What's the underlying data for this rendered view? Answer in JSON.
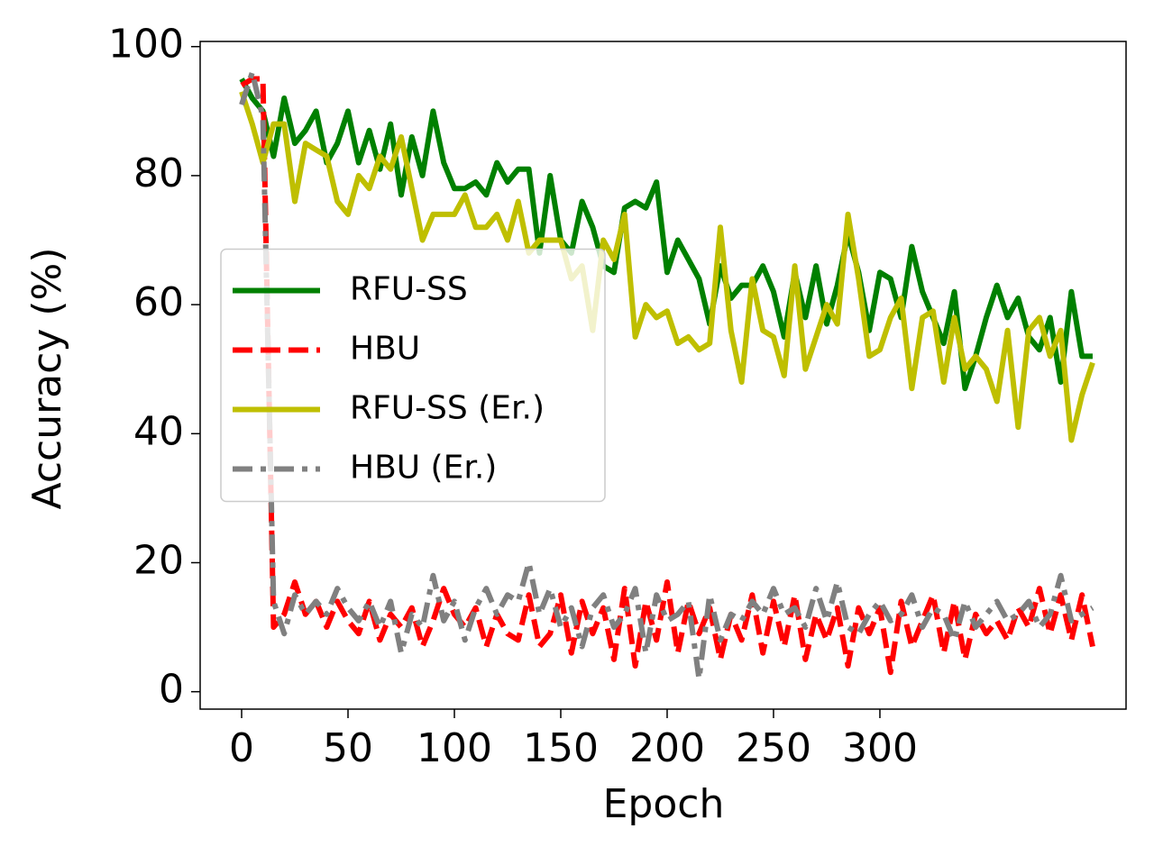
{
  "chart_data": {
    "type": "line",
    "xlabel": "Epoch",
    "ylabel": "Accuracy (%)",
    "x": [
      0,
      5,
      10,
      15,
      20,
      25,
      30,
      35,
      40,
      45,
      50,
      55,
      60,
      65,
      70,
      75,
      80,
      85,
      90,
      95,
      100,
      105,
      110,
      115,
      120,
      125,
      130,
      135,
      140,
      145,
      150,
      155,
      160,
      165,
      170,
      175,
      180,
      185,
      190,
      195,
      200,
      205,
      210,
      215,
      220,
      225,
      230,
      235,
      240,
      245,
      250,
      255,
      260,
      265,
      270,
      275,
      280,
      285,
      290,
      295,
      300,
      305,
      310,
      315,
      320,
      325,
      330,
      335,
      340,
      345,
      350,
      355,
      360,
      365,
      370,
      375,
      380,
      385,
      390,
      395,
      400
    ],
    "series": [
      {
        "name": "RFU-SS",
        "color": "#008000",
        "linestyle": "solid",
        "values": [
          95,
          92,
          90,
          83,
          92,
          85,
          87,
          90,
          82,
          85,
          90,
          82,
          87,
          81,
          88,
          77,
          86,
          80,
          90,
          82,
          78,
          78,
          79,
          77,
          82,
          79,
          81,
          81,
          68,
          80,
          70,
          68,
          76,
          72,
          66,
          65,
          75,
          76,
          75,
          79,
          65,
          70,
          67,
          64,
          57,
          66,
          61,
          63,
          63,
          66,
          62,
          55,
          65,
          58,
          66,
          57,
          63,
          71,
          65,
          56,
          65,
          64,
          58,
          69,
          62,
          58,
          54,
          62,
          47,
          52,
          58,
          63,
          58,
          61,
          55,
          53,
          58,
          48,
          62,
          52,
          52
        ]
      },
      {
        "name": "HBU",
        "color": "#ff0000",
        "linestyle": "dashed",
        "values": [
          94,
          95,
          95,
          10,
          12,
          17,
          12,
          14,
          10,
          14,
          11,
          9,
          14,
          8,
          12,
          10,
          13,
          7,
          11,
          16,
          12,
          10,
          13,
          7,
          12,
          9,
          8,
          15,
          7,
          9,
          15,
          6,
          14,
          9,
          13,
          5,
          16,
          4,
          14,
          8,
          17,
          6,
          14,
          9,
          13,
          5,
          12,
          8,
          15,
          6,
          14,
          7,
          15,
          5,
          12,
          8,
          13,
          4,
          13,
          9,
          13,
          3,
          14,
          7,
          11,
          15,
          6,
          14,
          5,
          12,
          9,
          11,
          8,
          13,
          10,
          16,
          9,
          15,
          8,
          15,
          7
        ]
      },
      {
        "name": "RFU-SS (Er.)",
        "color": "#bfbf00",
        "linestyle": "solid",
        "values": [
          93,
          88,
          82,
          88,
          88,
          76,
          85,
          84,
          83,
          76,
          74,
          80,
          78,
          83,
          81,
          86,
          78,
          70,
          74,
          74,
          74,
          77,
          72,
          72,
          74,
          70,
          76,
          68,
          70,
          70,
          70,
          64,
          66,
          56,
          70,
          67,
          74,
          55,
          60,
          58,
          59,
          54,
          55,
          53,
          54,
          72,
          56,
          48,
          64,
          56,
          55,
          49,
          66,
          50,
          55,
          60,
          57,
          74,
          64,
          52,
          53,
          58,
          61,
          47,
          58,
          59,
          48,
          58,
          50,
          52,
          50,
          45,
          56,
          41,
          56,
          58,
          52,
          56,
          39,
          46,
          51
        ]
      },
      {
        "name": "HBU (Er.)",
        "color": "#808080",
        "linestyle": "dashdot",
        "values": [
          91,
          96,
          89,
          14,
          9,
          15,
          12,
          14,
          12,
          16,
          13,
          11,
          14,
          10,
          14,
          6,
          12,
          10,
          18,
          11,
          14,
          8,
          13,
          16,
          12,
          15,
          14,
          20,
          12,
          16,
          10,
          13,
          7,
          13,
          15,
          10,
          12,
          16,
          6,
          15,
          11,
          12,
          14,
          2,
          15,
          8,
          12,
          11,
          14,
          12,
          16,
          12,
          13,
          10,
          16,
          11,
          17,
          10,
          9,
          12,
          14,
          11,
          12,
          15,
          10,
          13,
          12,
          8,
          14,
          10,
          12,
          14,
          11,
          12,
          14,
          10,
          12,
          18,
          11,
          12,
          13
        ]
      }
    ],
    "xlim": [
      -19.5,
      415.7
    ],
    "xticks": [
      0,
      50,
      100,
      150,
      200,
      250,
      300
    ],
    "ylim": [
      -2.7,
      100.8
    ],
    "yticks": [
      0,
      20,
      40,
      60,
      80,
      100
    ],
    "legend": "center left"
  }
}
